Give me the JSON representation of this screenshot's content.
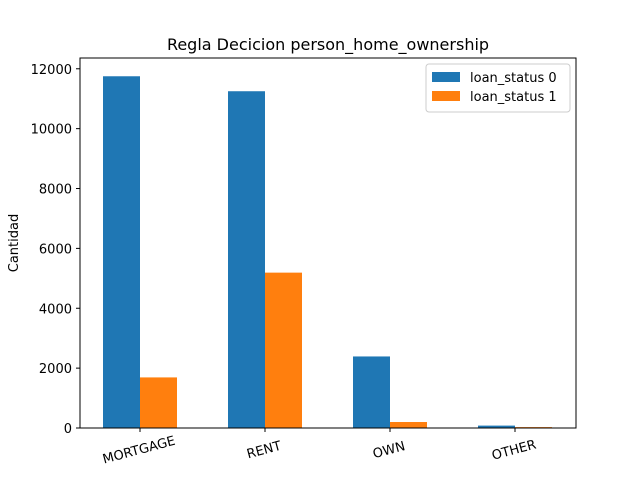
{
  "chart_data": {
    "type": "bar",
    "title": "Regla Decicion person_home_ownership",
    "xlabel": "person_home_ownership",
    "ylabel": "Cantidad",
    "categories": [
      "MORTGAGE",
      "RENT",
      "OWN",
      "OTHER"
    ],
    "series": [
      {
        "name": "loan_status 0",
        "color": "#1f77b4",
        "values": [
          11750,
          11250,
          2390,
          80
        ]
      },
      {
        "name": "loan_status 1",
        "color": "#ff7f0e",
        "values": [
          1690,
          5190,
          200,
          30
        ]
      }
    ],
    "ylim": [
      0,
      12000
    ],
    "yticks": [
      0,
      2000,
      4000,
      6000,
      8000,
      10000,
      12000
    ],
    "legend_position": "top-right",
    "grid": false
  }
}
